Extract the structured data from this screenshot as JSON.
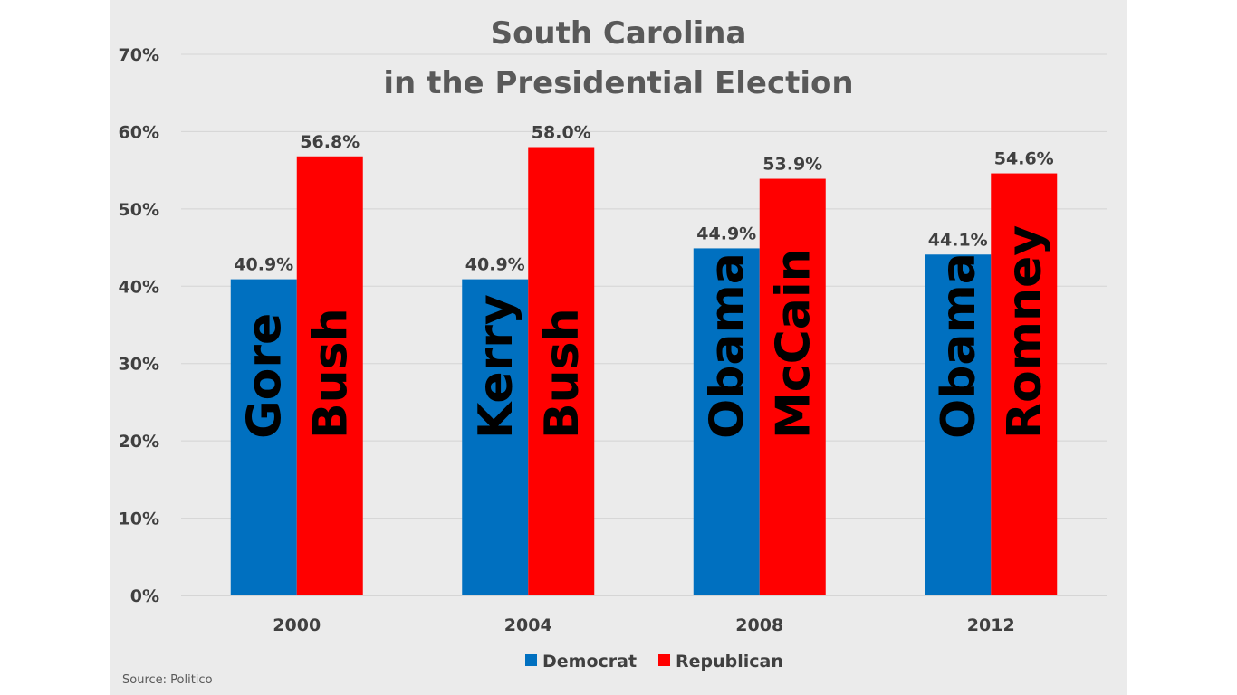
{
  "chart_data": {
    "type": "bar",
    "title": [
      "South Carolina",
      "in the Presidential Election"
    ],
    "categories": [
      "2000",
      "2004",
      "2008",
      "2012"
    ],
    "series": [
      {
        "name": "Democrat",
        "color": "#0070c0",
        "values": [
          40.9,
          40.9,
          44.9,
          44.1
        ],
        "labels": [
          "40.9%",
          "40.9%",
          "44.9%",
          "44.1%"
        ],
        "candidates": [
          "Gore",
          "Kerry",
          "Obama",
          "Obama"
        ]
      },
      {
        "name": "Republican",
        "color": "#ff0000",
        "values": [
          56.8,
          58.0,
          53.9,
          54.6
        ],
        "labels": [
          "56.8%",
          "58.0%",
          "53.9%",
          "54.6%"
        ],
        "candidates": [
          "Bush",
          "Bush",
          "McCain",
          "Romney"
        ]
      }
    ],
    "ylim": [
      0,
      70
    ],
    "yticks": [
      "0%",
      "10%",
      "20%",
      "30%",
      "40%",
      "50%",
      "60%",
      "70%"
    ],
    "xlabel": "",
    "ylabel": "",
    "grid": true,
    "legend_position": "bottom",
    "source": "Source: Politico"
  }
}
